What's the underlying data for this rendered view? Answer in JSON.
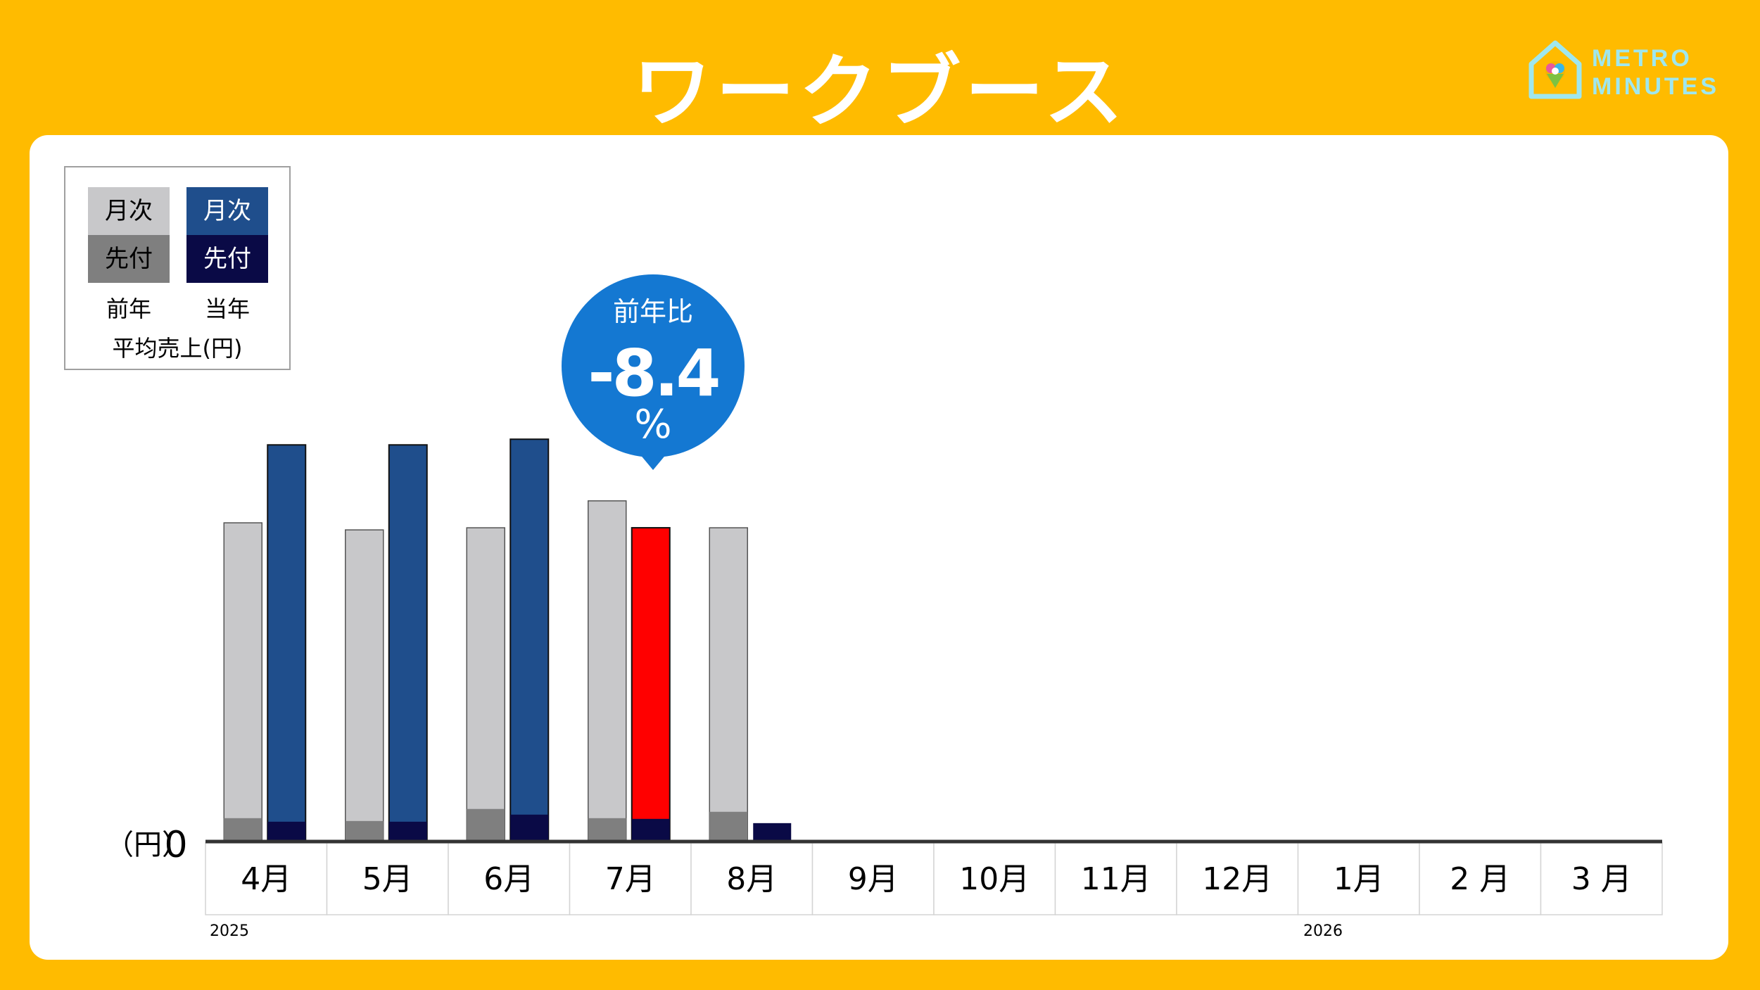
{
  "title": "ワークブース",
  "logo": {
    "line1": "METRO",
    "line2": "MINUTES"
  },
  "legend": {
    "monthly": "月次",
    "advance": "先付",
    "prev_year": "前年",
    "curr_year": "当年",
    "caption": "平均売上(円)"
  },
  "callout": {
    "label": "前年比",
    "value": "-8.4",
    "unit": "%"
  },
  "axis": {
    "unit_label": "（円）",
    "zero_label": "0"
  },
  "year_labels": {
    "start": "2025",
    "end": "2026"
  },
  "colors": {
    "prev_monthly": "#C8C8CA",
    "prev_advance": "#7F7F7F",
    "curr_monthly": "#1F4E8C",
    "curr_advance": "#0A0A46",
    "highlight": "#FF0000",
    "callout": "#1478D2",
    "background": "#FFBB00"
  },
  "chart_data": {
    "type": "bar",
    "title": "ワークブース",
    "categories": [
      "4月",
      "5月",
      "6月",
      "7月",
      "8月",
      "9月",
      "10月",
      "11月",
      "12月",
      "1月",
      "2 月",
      "3 月"
    ],
    "series": [
      {
        "name": "前年 月次",
        "values": [
          448,
          438,
          441,
          479,
          441,
          null,
          null,
          null,
          null,
          null,
          null,
          null
        ]
      },
      {
        "name": "前年 先付",
        "values": [
          31,
          27,
          44,
          31,
          40,
          null,
          null,
          null,
          null,
          null,
          null,
          null
        ]
      },
      {
        "name": "当年 月次",
        "values": [
          558,
          558,
          566,
          441,
          null,
          null,
          null,
          null,
          null,
          null,
          null,
          null
        ]
      },
      {
        "name": "当年 先付",
        "values": [
          26,
          26,
          36,
          30,
          24,
          null,
          null,
          null,
          null,
          null,
          null,
          null
        ]
      }
    ],
    "highlight_category": "7月",
    "ylabel": "（円）",
    "ylim": [
      0,
      600
    ],
    "grid": false,
    "legend_position": "top-left"
  }
}
